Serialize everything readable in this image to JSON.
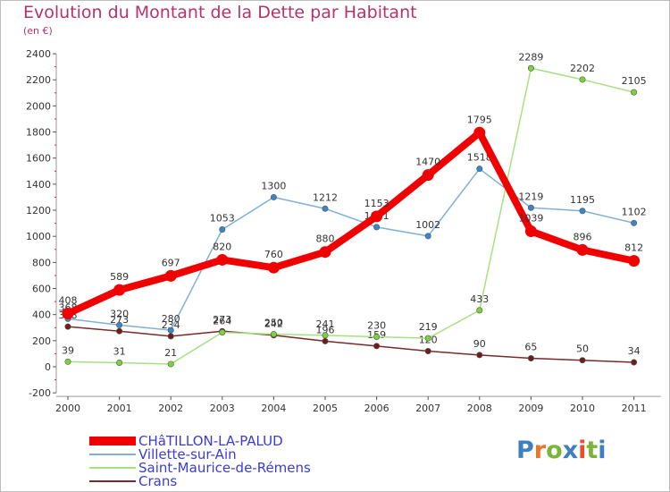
{
  "header": {
    "title": "Evolution du Montant de la Dette par Habitant",
    "subtitle": "(en €)"
  },
  "logo": {
    "text": "Proxiti",
    "colors": [
      "#3d7fc1",
      "#e8762d",
      "#79b53b",
      "#3d7fc1",
      "#e84b2d",
      "#79b53b",
      "#3d7fc1"
    ]
  },
  "chart_data": {
    "type": "line",
    "title": "Evolution du Montant de la Dette par Habitant",
    "subtitle": "(en €)",
    "xlabel": "",
    "ylabel": "",
    "categories": [
      "2000",
      "2001",
      "2002",
      "2003",
      "2004",
      "2005",
      "2006",
      "2007",
      "2008",
      "2009",
      "2010",
      "2011"
    ],
    "ylim": [
      -200,
      2400
    ],
    "yticks": [
      -200,
      0,
      200,
      400,
      600,
      800,
      1000,
      1200,
      1400,
      1600,
      1800,
      2000,
      2200,
      2400
    ],
    "grid": false,
    "legend": "bottom-left",
    "series": [
      {
        "name": "Crans",
        "color": "#7a2a2a",
        "marker": "#6b1e1e",
        "values": [
          308,
          273,
          234,
          273,
          242,
          196,
          159,
          120,
          90,
          65,
          50,
          34
        ]
      },
      {
        "name": "Saint-Maurice-de-Rémens",
        "color": "#a8e080",
        "marker": "#7cd23c",
        "values": [
          39,
          31,
          21,
          264,
          250,
          241,
          230,
          219,
          433,
          2289,
          2202,
          2105
        ]
      },
      {
        "name": "Villette-sur-Ain",
        "color": "#7fb0d8",
        "marker": "#3b86c8",
        "values": [
          368,
          320,
          280,
          1053,
          1300,
          1212,
          1071,
          1002,
          1518,
          1219,
          1195,
          1102
        ]
      },
      {
        "name": "CHâTILLON-LA-PALUD",
        "color": "#f00000",
        "marker": "#f00000",
        "values": [
          408,
          589,
          697,
          820,
          760,
          880,
          1153,
          1470,
          1795,
          1039,
          896,
          812
        ]
      }
    ]
  }
}
